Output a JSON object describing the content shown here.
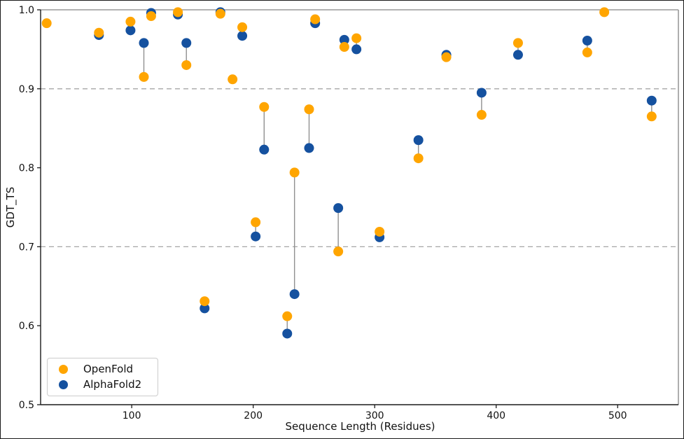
{
  "chart_data": {
    "type": "scatter",
    "title": "",
    "xlabel": "Sequence Length (Residues)",
    "ylabel": "GDT_TS",
    "xlim": [
      25,
      550
    ],
    "ylim": [
      0.5,
      1.0
    ],
    "x_ticks": [
      100,
      200,
      300,
      400,
      500
    ],
    "y_ticks": [
      0.5,
      0.6,
      0.7,
      0.8,
      0.9,
      1.0
    ],
    "dashed_gridlines_y": [
      0.7,
      0.9
    ],
    "grid": "off",
    "legend_position": "lower-left",
    "connector_note": "paired points at same x joined by gray vertical line",
    "series": [
      {
        "name": "OpenFold",
        "key": "openfold",
        "color": "#FFA500"
      },
      {
        "name": "AlphaFold2",
        "key": "alphafold2",
        "color": "#15519F"
      }
    ],
    "points": [
      {
        "x": 30,
        "openfold": 0.983,
        "alphafold2": null
      },
      {
        "x": 73,
        "openfold": 0.971,
        "alphafold2": 0.968
      },
      {
        "x": 99,
        "openfold": 0.985,
        "alphafold2": 0.974
      },
      {
        "x": 110,
        "openfold": 0.915,
        "alphafold2": 0.958
      },
      {
        "x": 116,
        "openfold": 0.992,
        "alphafold2": 0.996
      },
      {
        "x": 138,
        "openfold": 0.997,
        "alphafold2": 0.994
      },
      {
        "x": 145,
        "openfold": 0.93,
        "alphafold2": 0.958
      },
      {
        "x": 160,
        "openfold": 0.631,
        "alphafold2": 0.622
      },
      {
        "x": 173,
        "openfold": 0.995,
        "alphafold2": 0.997
      },
      {
        "x": 183,
        "openfold": 0.912,
        "alphafold2": null
      },
      {
        "x": 191,
        "openfold": 0.978,
        "alphafold2": 0.967
      },
      {
        "x": 202,
        "openfold": 0.731,
        "alphafold2": 0.713
      },
      {
        "x": 209,
        "openfold": 0.877,
        "alphafold2": 0.823
      },
      {
        "x": 228,
        "openfold": 0.612,
        "alphafold2": 0.59
      },
      {
        "x": 234,
        "openfold": 0.794,
        "alphafold2": 0.64
      },
      {
        "x": 246,
        "openfold": 0.874,
        "alphafold2": 0.825
      },
      {
        "x": 251,
        "openfold": 0.988,
        "alphafold2": 0.983
      },
      {
        "x": 270,
        "openfold": 0.694,
        "alphafold2": 0.749
      },
      {
        "x": 275,
        "openfold": 0.953,
        "alphafold2": 0.962
      },
      {
        "x": 285,
        "openfold": 0.964,
        "alphafold2": 0.95
      },
      {
        "x": 304,
        "openfold": 0.719,
        "alphafold2": 0.712
      },
      {
        "x": 336,
        "openfold": 0.812,
        "alphafold2": 0.835
      },
      {
        "x": 359,
        "openfold": 0.94,
        "alphafold2": 0.943
      },
      {
        "x": 388,
        "openfold": 0.867,
        "alphafold2": 0.895
      },
      {
        "x": 418,
        "openfold": 0.958,
        "alphafold2": 0.943
      },
      {
        "x": 475,
        "openfold": 0.946,
        "alphafold2": 0.961
      },
      {
        "x": 489,
        "openfold": 0.997,
        "alphafold2": null
      },
      {
        "x": 528,
        "openfold": 0.865,
        "alphafold2": 0.885
      }
    ]
  },
  "style_colors": {
    "openfold": "#FFA500",
    "alphafold2": "#15519F",
    "dashed_line": "#a6a6a6",
    "connector": "#909090",
    "spine_dark": "#1a1a1a",
    "spine_light": "#999999",
    "text": "#111111"
  }
}
